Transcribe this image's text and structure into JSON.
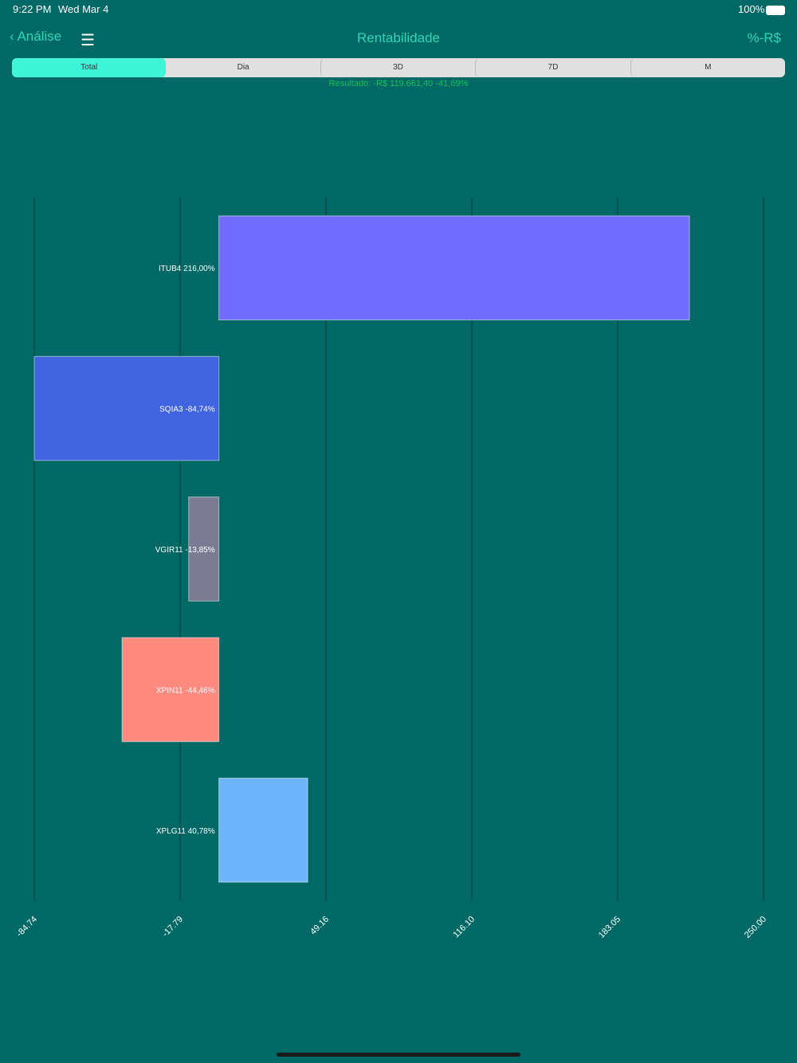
{
  "status_bar": {
    "time": "9:22 PM",
    "date": "Wed Mar 4",
    "battery": "100%"
  },
  "nav": {
    "back": "Análise",
    "title": "Rentabilidade",
    "action": "%-R$"
  },
  "segments": [
    "Total",
    "Dia",
    "3D",
    "7D",
    "M"
  ],
  "result": "Resultado: -R$ 119.661,40 -41,69%",
  "chart_data": {
    "type": "hbar",
    "categories": [
      "ITUB4",
      "SQIA3",
      "VGIR11",
      "XPIN11",
      "XPLG11"
    ],
    "values": [
      216,
      -84.74,
      -13.85,
      -44.46,
      40.78
    ],
    "value_labels": [
      "216,00%",
      "-84,74%",
      "-13,85%",
      "-44,46%",
      "40,78%"
    ],
    "colors": [
      "#6f6cff",
      "#4064e0",
      "#7b7b93",
      "#ff8a80",
      "#6db6fb"
    ],
    "xlim": [
      -84.74,
      250
    ],
    "xticks": [
      -84.74,
      -17.79,
      49.16,
      {
        "value": 116.1,
        "label": "116.10"
      },
      183.05,
      {
        "value": 250,
        "label": "250.00"
      }
    ],
    "grid": true
  }
}
